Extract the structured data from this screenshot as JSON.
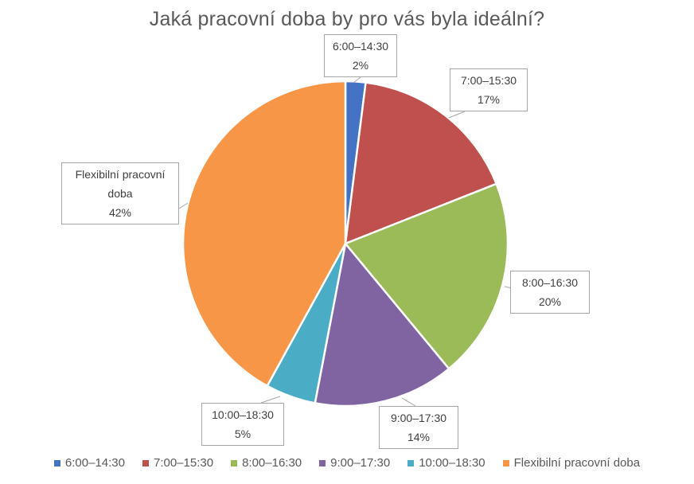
{
  "chart_data": {
    "type": "pie",
    "title": "Jaká pracovní doba by pro vás byla ideální?",
    "slices": [
      {
        "label": "6:00–14:30",
        "label_lines": [
          "6:00–14:30"
        ],
        "value": 2,
        "display": "2%",
        "color": "#4472C4"
      },
      {
        "label": "7:00–15:30",
        "label_lines": [
          "7:00–15:30"
        ],
        "value": 17,
        "display": "17%",
        "color": "#C0504D"
      },
      {
        "label": "8:00–16:30",
        "label_lines": [
          "8:00–16:30"
        ],
        "value": 20,
        "display": "20%",
        "color": "#9BBB59"
      },
      {
        "label": "9:00–17:30",
        "label_lines": [
          "9:00–17:30"
        ],
        "value": 14,
        "display": "14%",
        "color": "#8064A2"
      },
      {
        "label": "10:00–18:30",
        "label_lines": [
          "10:00–18:30"
        ],
        "value": 5,
        "display": "5%",
        "color": "#4BACC6"
      },
      {
        "label": "Flexibilní pracovní doba",
        "label_lines": [
          "Flexibilní pracovní",
          "doba"
        ],
        "value": 42,
        "display": "42%",
        "color": "#F79646"
      }
    ],
    "legend_position": "bottom"
  }
}
